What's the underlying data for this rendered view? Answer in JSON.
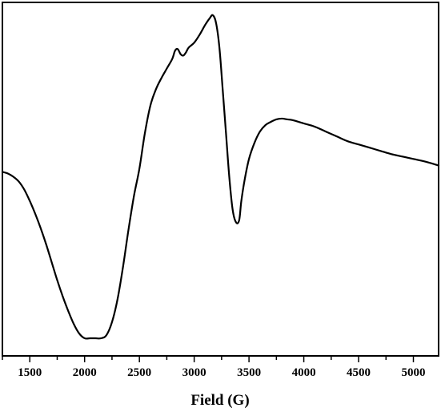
{
  "chart_data": {
    "type": "line",
    "title": "",
    "xlabel": "Field (G)",
    "ylabel": "",
    "xlim": [
      1250,
      5230
    ],
    "ylim": [
      -1.0,
      1.0
    ],
    "y_axis_visible": false,
    "grid": false,
    "legend": "none",
    "x_ticks": [
      1500,
      2000,
      2500,
      3000,
      3500,
      4000,
      4500,
      5000
    ],
    "x_tick_labels": [
      "1500",
      "2000",
      "2500",
      "3000",
      "3500",
      "4000",
      "4500",
      "5000"
    ],
    "series": [
      {
        "color": "#000000",
        "x": [
          1250,
          1300,
          1350,
          1400,
          1450,
          1500,
          1550,
          1600,
          1650,
          1700,
          1750,
          1800,
          1850,
          1900,
          1950,
          2000,
          2050,
          2100,
          2150,
          2200,
          2250,
          2300,
          2350,
          2400,
          2450,
          2500,
          2550,
          2600,
          2650,
          2700,
          2750,
          2800,
          2825,
          2850,
          2875,
          2900,
          2925,
          2950,
          3000,
          3050,
          3100,
          3140,
          3170,
          3200,
          3230,
          3260,
          3290,
          3320,
          3350,
          3380,
          3410,
          3430,
          3460,
          3500,
          3550,
          3600,
          3650,
          3700,
          3750,
          3800,
          3850,
          3900,
          4000,
          4100,
          4200,
          4300,
          4400,
          4500,
          4600,
          4700,
          4800,
          4900,
          5000,
          5100,
          5230
        ],
        "y": [
          0.03,
          0.02,
          0.0,
          -0.03,
          -0.08,
          -0.15,
          -0.23,
          -0.32,
          -0.42,
          -0.53,
          -0.64,
          -0.74,
          -0.83,
          -0.91,
          -0.97,
          -1.0,
          -1.0,
          -1.0,
          -1.0,
          -0.98,
          -0.9,
          -0.76,
          -0.56,
          -0.33,
          -0.12,
          0.05,
          0.27,
          0.44,
          0.54,
          0.61,
          0.67,
          0.73,
          0.78,
          0.79,
          0.76,
          0.75,
          0.77,
          0.8,
          0.83,
          0.88,
          0.94,
          0.98,
          1.0,
          0.95,
          0.8,
          0.54,
          0.27,
          0.0,
          -0.2,
          -0.28,
          -0.27,
          -0.15,
          -0.02,
          0.11,
          0.21,
          0.28,
          0.32,
          0.34,
          0.355,
          0.36,
          0.355,
          0.35,
          0.33,
          0.31,
          0.28,
          0.25,
          0.22,
          0.2,
          0.18,
          0.16,
          0.14,
          0.125,
          0.11,
          0.095,
          0.07
        ]
      }
    ]
  }
}
